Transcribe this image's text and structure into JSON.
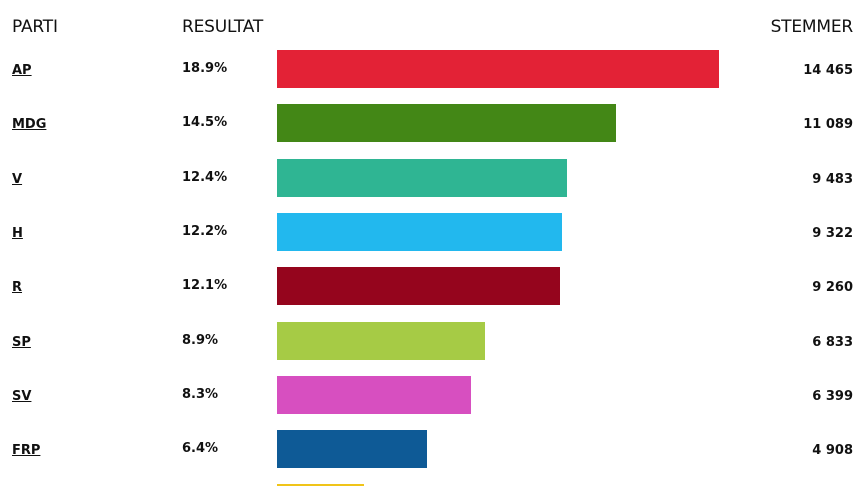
{
  "header": {
    "party": "PARTI",
    "result": "RESULTAT",
    "votes": "STEMMER"
  },
  "chart_data": {
    "type": "bar",
    "orientation": "horizontal",
    "categories": [
      "AP",
      "MDG",
      "V",
      "H",
      "R",
      "SP",
      "SV",
      "FRP"
    ],
    "values": [
      18.9,
      14.5,
      12.4,
      12.2,
      12.1,
      8.9,
      8.3,
      6.4
    ],
    "value_labels": [
      "18.9%",
      "14.5%",
      "12.4%",
      "12.2%",
      "12.1%",
      "8.9%",
      "8.3%",
      "6.4%"
    ],
    "votes": [
      "14 465",
      "11 089",
      "9 483",
      "9 322",
      "9 260",
      "6 833",
      "6 399",
      "4 908"
    ],
    "colors": [
      "#e32236",
      "#438716",
      "#2fb593",
      "#22b8ee",
      "#95051d",
      "#a6cb45",
      "#d74fc0",
      "#0e5a96"
    ],
    "next_bar_color": "#f0c419",
    "xlim": [
      0,
      18.9
    ],
    "grid": false,
    "legend": "none"
  }
}
